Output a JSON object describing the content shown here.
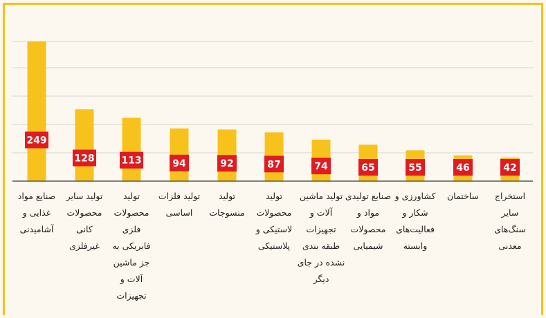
{
  "chart_data": {
    "type": "bar",
    "categories": [
      "صنایع مواد غذایی و آشامیدنی",
      "تولید سایر محصولات کانی غیرفلزی",
      "تولید محصولات فلزی فابریکی به جز ماشین آلات و تجهیزات",
      "تولید فلزات اساسی",
      "تولید منسوجات",
      "تولید محصولات لاستیکی و پلاستیکی",
      "تولید ماشین آلات و تجهیزات طبقه بندی نشده در جای دیگر",
      "صنایع تولیدی مواد و محصولات شیمیایی",
      "کشاورزی و شکار و فعالیت‌های وابسته",
      "ساختمان",
      "استخراج سایر سنگ‌های معدنی"
    ],
    "values": [
      249,
      128,
      113,
      94,
      92,
      87,
      74,
      65,
      55,
      46,
      42
    ],
    "data_labels": [
      "249",
      "128",
      "113",
      "94",
      "92",
      "87",
      "74",
      "65",
      "55",
      "46",
      "42"
    ],
    "ylim": [
      0,
      270
    ],
    "grid": true,
    "colors": {
      "bar": "#f8c21d",
      "label_box": "#e01b22",
      "label_text": "#ffffff",
      "grid": "#d3d3d3",
      "axis": "#555555"
    }
  }
}
